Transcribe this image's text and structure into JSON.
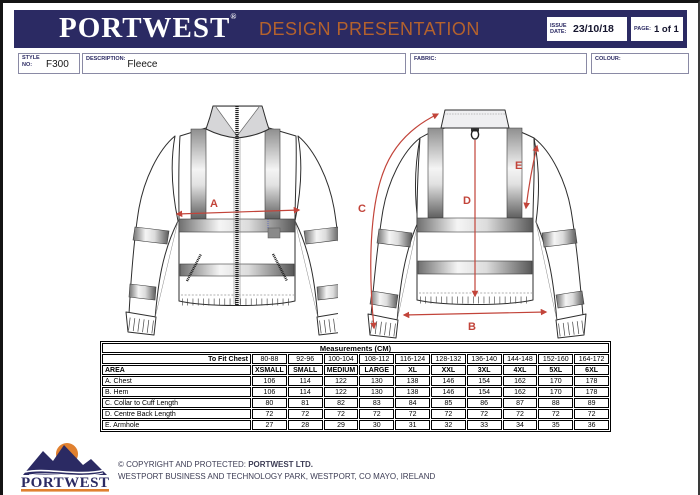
{
  "header": {
    "brand": "PORTWEST",
    "brand_reg": "®",
    "title": "DESIGN PRESENTATION",
    "issue_date_label": "ISSUE DATE:",
    "issue_date": "23/10/18",
    "page_label": "PAGE:",
    "page": "1 of 1"
  },
  "fields": {
    "style_label": "STYLE NO:",
    "style_value": "F300",
    "description_label": "DESCRIPTION:",
    "description_value": "Fleece",
    "fabric_label": "FABRIC:",
    "fabric_value": "",
    "colour_label": "COLOUR:",
    "colour_value": ""
  },
  "drawing": {
    "labels": {
      "a": "A",
      "b": "B",
      "c": "C",
      "d": "D",
      "e": "E"
    }
  },
  "measurements": {
    "title": "Measurements (CM)",
    "fit_label": "To Fit Chest",
    "area_label": "AREA",
    "to_fit_chest": [
      "80-88",
      "92-96",
      "100-104",
      "108-112",
      "116-124",
      "128-132",
      "136-140",
      "144-148",
      "152-160",
      "164-172"
    ],
    "sizes": [
      "XSMALL",
      "SMALL",
      "MEDIUM",
      "LARGE",
      "XL",
      "XXL",
      "3XL",
      "4XL",
      "5XL",
      "6XL"
    ],
    "rows": [
      {
        "area": "A. Chest",
        "values": [
          106,
          114,
          122,
          130,
          138,
          146,
          154,
          162,
          170,
          178
        ]
      },
      {
        "area": "B. Hem",
        "values": [
          106,
          114,
          122,
          130,
          138,
          146,
          154,
          162,
          170,
          178
        ]
      },
      {
        "area": "C. Collar to Cuff Length",
        "values": [
          80,
          81,
          82,
          83,
          84,
          85,
          86,
          87,
          88,
          89
        ]
      },
      {
        "area": "D. Centre Back Length",
        "values": [
          72,
          72,
          72,
          72,
          72,
          72,
          72,
          72,
          72,
          72
        ]
      },
      {
        "area": "E. Armhole",
        "values": [
          27,
          28,
          29,
          30,
          31,
          32,
          33,
          34,
          35,
          36
        ]
      }
    ]
  },
  "footer": {
    "logo_text": "PORTWEST",
    "copyright_prefix": "© COPYRIGHT AND PROTECTED: ",
    "copyright_company": "PORTWEST LTD.",
    "address": "WESTPORT BUSINESS AND TECHNOLOGY PARK, WESTPORT, CO MAYO, IRELAND"
  },
  "colors": {
    "navy": "#2b2a63",
    "orange": "#b4622d",
    "logo_orange": "#e0802f",
    "arrow_red": "#c2443a"
  }
}
